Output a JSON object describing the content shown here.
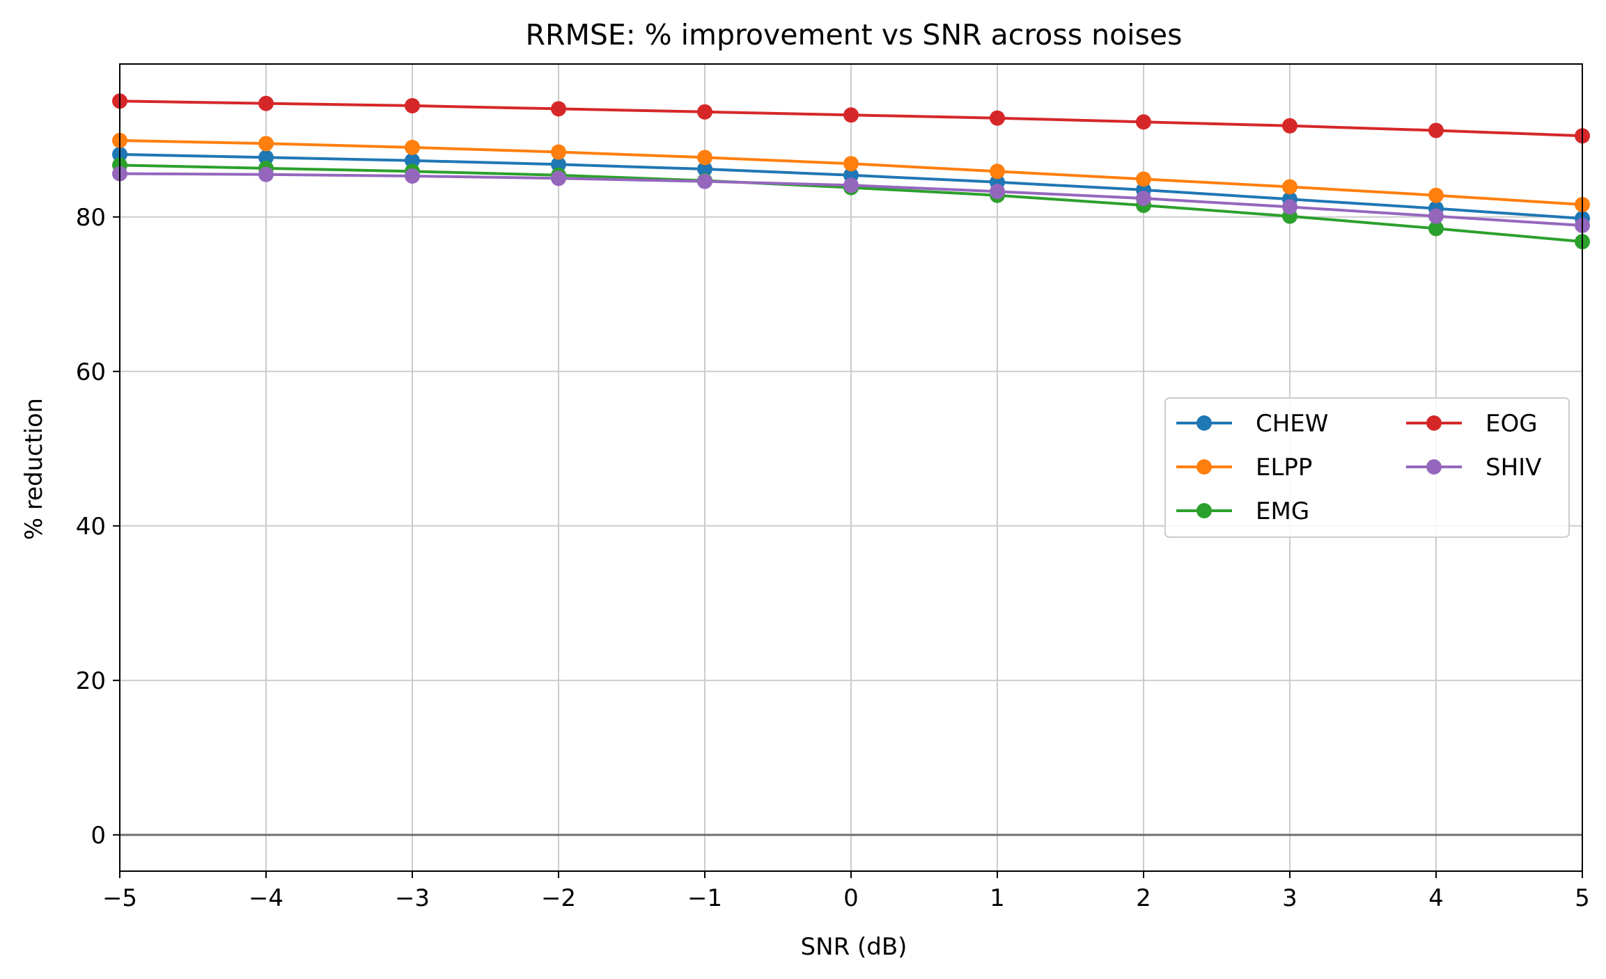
{
  "chart_data": {
    "type": "line",
    "title": "RRMSE: % improvement vs SNR across noises",
    "xlabel": "SNR (dB)",
    "ylabel": "% reduction",
    "xlim": [
      -5,
      5
    ],
    "ylim": [
      -4.7,
      99.8
    ],
    "x_ticks": [
      -5,
      -4,
      -3,
      -2,
      -1,
      0,
      1,
      2,
      3,
      4,
      5
    ],
    "x_tick_labels": [
      "−5",
      "−4",
      "−3",
      "−2",
      "−1",
      "0",
      "1",
      "2",
      "3",
      "4",
      "5"
    ],
    "y_ticks": [
      0,
      20,
      40,
      60,
      80
    ],
    "y_tick_labels": [
      "0",
      "20",
      "40",
      "60",
      "80"
    ],
    "grid": true,
    "reference_line_y": 0,
    "legend_position": "center-right",
    "legend_columns": 2,
    "x": [
      -5,
      -4,
      -3,
      -2,
      -1,
      0,
      1,
      2,
      3,
      4,
      5
    ],
    "series": [
      {
        "name": "CHEW",
        "color": "#1f77b4",
        "values": [
          88.1,
          87.7,
          87.3,
          86.8,
          86.2,
          85.4,
          84.5,
          83.5,
          82.3,
          81.1,
          79.8
        ]
      },
      {
        "name": "ELPP",
        "color": "#ff7f0e",
        "values": [
          89.9,
          89.5,
          89.0,
          88.4,
          87.7,
          86.9,
          85.9,
          84.9,
          83.9,
          82.8,
          81.6
        ]
      },
      {
        "name": "EMG",
        "color": "#2ca02c",
        "values": [
          86.7,
          86.3,
          85.9,
          85.4,
          84.7,
          83.8,
          82.8,
          81.5,
          80.1,
          78.5,
          76.8
        ]
      },
      {
        "name": "EOG",
        "color": "#d62728",
        "values": [
          95.0,
          94.7,
          94.4,
          94.0,
          93.6,
          93.2,
          92.8,
          92.3,
          91.8,
          91.2,
          90.5
        ]
      },
      {
        "name": "SHIV",
        "color": "#9467bd",
        "values": [
          85.6,
          85.5,
          85.3,
          85.0,
          84.6,
          84.1,
          83.3,
          82.4,
          81.3,
          80.1,
          78.9
        ]
      }
    ]
  }
}
